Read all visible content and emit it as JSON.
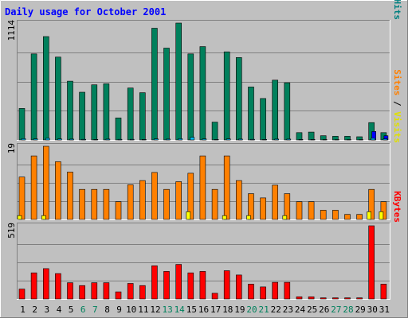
{
  "chart_data": {
    "type": "bar",
    "title": "Daily usage for October 2001",
    "days": [
      "1",
      "2",
      "3",
      "4",
      "5",
      "6",
      "7",
      "8",
      "9",
      "10",
      "11",
      "12",
      "13",
      "14",
      "15",
      "16",
      "17",
      "18",
      "19",
      "20",
      "21",
      "22",
      "23",
      "24",
      "25",
      "26",
      "27",
      "28",
      "29",
      "30",
      "31"
    ],
    "weekend_days": [
      "6",
      "7",
      "13",
      "14",
      "20",
      "21",
      "27",
      "28"
    ],
    "panels": [
      {
        "id": "hits",
        "max_label": "1114",
        "ymax": 1114,
        "right_labels": [
          {
            "text": "Pages",
            "color": "#00c0ff"
          },
          {
            "text": " / ",
            "color": "#000000"
          },
          {
            "text": "Files",
            "color": "#0000ff"
          },
          {
            "text": " / ",
            "color": "#000000"
          },
          {
            "text": "Hits",
            "color": "#008080"
          }
        ],
        "series": [
          {
            "name": "Hits",
            "color": "#00805c",
            "values": [
              300,
              820,
              985,
              790,
              560,
              455,
              525,
              535,
              210,
              495,
              450,
              1065,
              875,
              1114,
              820,
              890,
              170,
              840,
              785,
              505,
              395,
              570,
              545,
              70,
              75,
              40,
              35,
              35,
              30,
              165,
              70
            ]
          },
          {
            "name": "Files",
            "color": "#0000ff",
            "values": [
              0,
              0,
              0,
              0,
              0,
              0,
              0,
              0,
              0,
              0,
              0,
              0,
              0,
              0,
              0,
              0,
              0,
              0,
              0,
              0,
              0,
              0,
              0,
              0,
              0,
              0,
              0,
              0,
              0,
              80,
              40
            ]
          },
          {
            "name": "Pages",
            "color": "#00c0ff",
            "values": [
              12,
              10,
              15,
              10,
              8,
              6,
              5,
              8,
              6,
              6,
              5,
              10,
              8,
              12,
              25,
              10,
              5,
              10,
              8,
              6,
              5,
              8,
              8,
              5,
              5,
              4,
              3,
              3,
              3,
              15,
              10
            ]
          }
        ]
      },
      {
        "id": "visits",
        "max_label": "19",
        "ymax": 19,
        "right_labels": [
          {
            "text": "Sites",
            "color": "#ff8000"
          },
          {
            "text": " / ",
            "color": "#000000"
          },
          {
            "text": "Visits",
            "color": "#e0e000"
          }
        ],
        "series": [
          {
            "name": "Sites",
            "color": "#ff8000",
            "values": [
              11,
              16.5,
              19,
              15,
              12.3,
              7.8,
              7.8,
              7.8,
              4.6,
              9,
              10.1,
              12.2,
              7.8,
              9.8,
              12,
              16.5,
              7.8,
              16.5,
              10.1,
              6.7,
              5.6,
              8.9,
              6.7,
              4.6,
              4.6,
              2.4,
              2.4,
              1.3,
              1.3,
              7.8,
              4.6
            ]
          },
          {
            "name": "Visits",
            "color": "#ffff00",
            "values": [
              1,
              0,
              1,
              0,
              0,
              0,
              0,
              0,
              0,
              0,
              0,
              0,
              0,
              0,
              2,
              0,
              0,
              1,
              0,
              1,
              0,
              0,
              1,
              0,
              0,
              0,
              0,
              0,
              0,
              2,
              2
            ]
          }
        ]
      },
      {
        "id": "kbytes",
        "max_label": "519",
        "ymax": 519,
        "right_labels": [
          {
            "text": "KBytes",
            "color": "#ff0000"
          }
        ],
        "series": [
          {
            "name": "KBytes",
            "color": "#ff0000",
            "values": [
              70,
              185,
              215,
              180,
              115,
              95,
              115,
              115,
              50,
              110,
              95,
              235,
              195,
              245,
              185,
              195,
              40,
              200,
              170,
              105,
              85,
              118,
              118,
              15,
              15,
              8,
              8,
              8,
              8,
              519,
              105
            ]
          }
        ]
      }
    ]
  }
}
